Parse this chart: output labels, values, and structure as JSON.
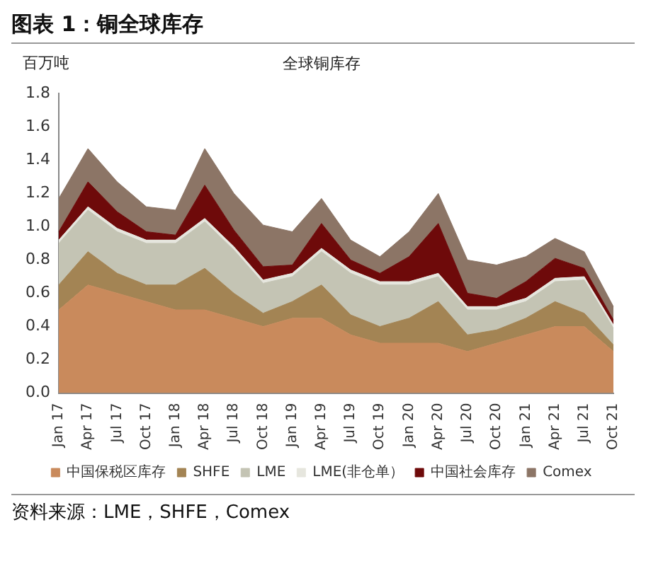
{
  "chart_data": {
    "type": "area",
    "title": "图表 1：铜全球库存",
    "subtitle": "全球铜库存",
    "ylabel": "百万吨",
    "categories": [
      "Jan 17",
      "Apr 17",
      "Jul 17",
      "Oct 17",
      "Jan 18",
      "Apr 18",
      "Jul 18",
      "Oct 18",
      "Jan 19",
      "Apr 19",
      "Jul 19",
      "Oct 19",
      "Jan 20",
      "Apr 20",
      "Jul 20",
      "Oct 20",
      "Jan 21",
      "Apr 21",
      "Jul 21",
      "Oct 21"
    ],
    "stacked": true,
    "series": [
      {
        "name": "中国保税区库存",
        "color": "#c98a5c",
        "values": [
          0.5,
          0.65,
          0.6,
          0.55,
          0.5,
          0.5,
          0.45,
          0.4,
          0.45,
          0.45,
          0.35,
          0.3,
          0.3,
          0.3,
          0.25,
          0.3,
          0.35,
          0.4,
          0.4,
          0.25
        ]
      },
      {
        "name": "SHFE",
        "color": "#a38454",
        "values": [
          0.15,
          0.2,
          0.12,
          0.1,
          0.15,
          0.25,
          0.15,
          0.08,
          0.1,
          0.2,
          0.12,
          0.1,
          0.15,
          0.25,
          0.1,
          0.08,
          0.1,
          0.15,
          0.08,
          0.04
        ]
      },
      {
        "name": "LME",
        "color": "#c4c4b4",
        "values": [
          0.25,
          0.25,
          0.25,
          0.25,
          0.25,
          0.28,
          0.26,
          0.18,
          0.15,
          0.2,
          0.25,
          0.25,
          0.2,
          0.15,
          0.15,
          0.12,
          0.1,
          0.12,
          0.2,
          0.1
        ]
      },
      {
        "name": "LME(非仓单）",
        "color": "#e6e6de",
        "values": [
          0.02,
          0.02,
          0.02,
          0.02,
          0.02,
          0.02,
          0.02,
          0.02,
          0.02,
          0.02,
          0.02,
          0.02,
          0.02,
          0.02,
          0.02,
          0.02,
          0.02,
          0.02,
          0.02,
          0.02
        ]
      },
      {
        "name": "中国社会库存",
        "color": "#6e0a0a",
        "values": [
          0.05,
          0.15,
          0.1,
          0.05,
          0.03,
          0.2,
          0.1,
          0.08,
          0.05,
          0.15,
          0.06,
          0.05,
          0.15,
          0.3,
          0.08,
          0.05,
          0.1,
          0.12,
          0.05,
          0.03
        ]
      },
      {
        "name": "Comex",
        "color": "#8c7566",
        "values": [
          0.2,
          0.2,
          0.18,
          0.15,
          0.15,
          0.22,
          0.22,
          0.25,
          0.2,
          0.15,
          0.12,
          0.1,
          0.15,
          0.18,
          0.2,
          0.2,
          0.15,
          0.12,
          0.1,
          0.08
        ]
      }
    ],
    "ylim": [
      0,
      1.8
    ],
    "yticks": [
      {
        "value": 0,
        "label": "0.0"
      },
      {
        "value": 0.2,
        "label": "0.2"
      },
      {
        "value": 0.4,
        "label": "0.4"
      },
      {
        "value": 0.6,
        "label": "0.6"
      },
      {
        "value": 0.8,
        "label": "0.8"
      },
      {
        "value": 1,
        "label": "1.0"
      },
      {
        "value": 1.2,
        "label": "1.2"
      },
      {
        "value": 1.4,
        "label": "1.4"
      },
      {
        "value": 1.6,
        "label": "1.6"
      },
      {
        "value": 1.8,
        "label": "1.8"
      }
    ],
    "grid": false,
    "legend": "bottom",
    "annotations": [
      "资料来源：LME，SHFE，Comex"
    ]
  }
}
